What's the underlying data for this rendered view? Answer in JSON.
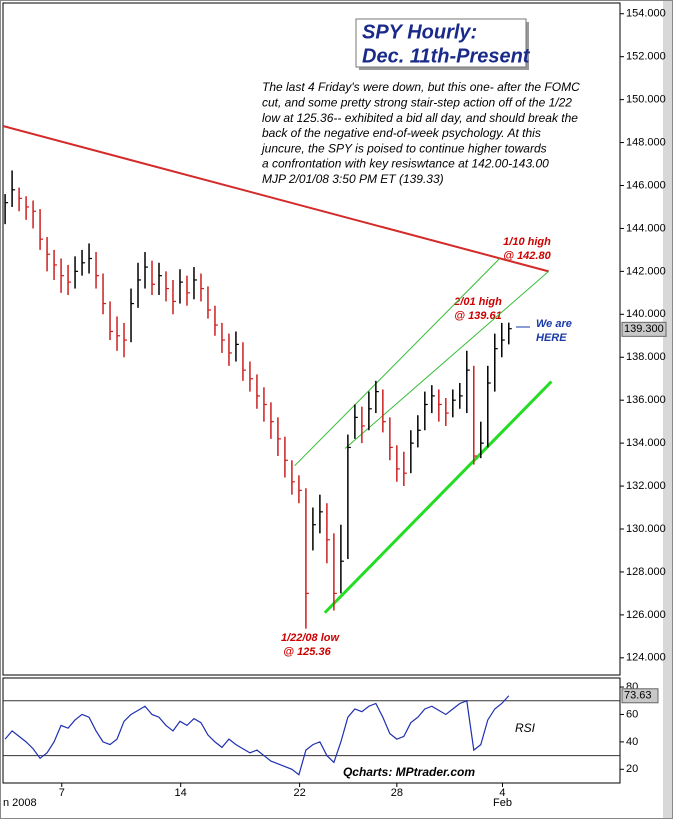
{
  "chart_data": [
    {
      "type": "ohlc",
      "title": [
        "SPY Hourly:",
        "Dec. 11th-Present"
      ],
      "commentary": [
        "The last 4 Friday's were down, but this one- after the FOMC",
        "cut, and some pretty strong stair-step action off of the 1/22",
        "low at 125.36-- exhibited a bid all day, and should break the",
        "back of the negative end-of-week psychology.  At this",
        "juncure, the SPY is poised to continue higher towards",
        "a confrontation with key resiswtance at 142.00-143.00",
        "MJP  2/01/08  3:50 PM ET  (139.33)"
      ],
      "annotations": [
        [
          "1/10 high",
          "@ 142.80"
        ],
        [
          "2/01 high",
          "@ 139.61"
        ],
        [
          "We are",
          "HERE"
        ],
        [
          "1/22/08 low",
          "@ 125.36"
        ]
      ],
      "up_color": "#000000",
      "down_color": "#cc1f1f",
      "high": [
        145.6,
        146.7,
        145.9,
        145.5,
        145.3,
        144.9,
        143.6,
        143.0,
        142.6,
        142.3,
        142.7,
        143.0,
        143.3,
        142.9,
        141.9,
        140.6,
        139.9,
        139.6,
        141.2,
        142.4,
        142.9,
        142.5,
        142.4,
        142.0,
        141.6,
        142.1,
        141.8,
        142.2,
        141.9,
        141.3,
        140.4,
        139.6,
        139.1,
        139.2,
        138.7,
        137.8,
        137.2,
        136.6,
        135.9,
        135.2,
        134.3,
        133.2,
        132.5,
        131.9,
        131.0,
        131.6,
        131.2,
        129.8,
        130.2,
        134.4,
        135.8,
        135.7,
        136.4,
        136.9,
        136.5,
        135.2,
        133.9,
        133.6,
        134.6,
        135.3,
        136.4,
        136.7,
        136.5,
        136.1,
        136.5,
        136.8,
        138.3,
        137.6,
        135.0,
        137.6,
        139.1,
        139.6,
        139.61
      ],
      "low": [
        144.2,
        145.0,
        144.8,
        144.4,
        144.0,
        143.0,
        142.0,
        141.6,
        141.0,
        140.9,
        141.2,
        141.8,
        141.9,
        141.2,
        140.0,
        138.8,
        138.3,
        138.0,
        138.7,
        140.3,
        141.2,
        140.9,
        140.9,
        140.6,
        140.0,
        140.5,
        140.4,
        140.7,
        140.6,
        139.8,
        139.0,
        138.2,
        137.6,
        137.8,
        136.9,
        136.4,
        135.6,
        135.0,
        134.2,
        133.4,
        132.4,
        131.6,
        131.2,
        125.36,
        129.0,
        129.8,
        128.4,
        126.2,
        127.0,
        128.6,
        134.2,
        134.0,
        134.6,
        135.4,
        134.5,
        133.2,
        132.2,
        132.0,
        132.6,
        133.8,
        134.6,
        135.4,
        135.0,
        134.8,
        135.2,
        135.6,
        135.4,
        133.0,
        133.3,
        133.8,
        136.4,
        138.0,
        138.6
      ],
      "close": [
        145.2,
        145.8,
        145.4,
        145.0,
        144.8,
        143.5,
        142.8,
        142.3,
        141.8,
        141.5,
        142.0,
        142.4,
        142.6,
        141.8,
        140.5,
        139.2,
        139.0,
        138.8,
        140.5,
        141.6,
        142.2,
        141.4,
        141.8,
        141.2,
        140.6,
        141.5,
        141.0,
        141.6,
        141.2,
        140.2,
        139.5,
        138.8,
        138.2,
        138.6,
        137.4,
        137.0,
        136.2,
        135.8,
        135.0,
        134.2,
        133.2,
        132.2,
        131.8,
        127.0,
        130.2,
        130.8,
        129.5,
        127.0,
        128.5,
        133.8,
        135.2,
        134.8,
        135.6,
        136.4,
        135.0,
        133.8,
        132.8,
        132.6,
        134.0,
        134.6,
        135.8,
        136.2,
        135.8,
        135.4,
        136.0,
        136.2,
        137.4,
        133.4,
        134.0,
        136.8,
        138.4,
        138.8,
        139.33
      ],
      "trendlines": [
        {
          "color": "#d42a2a",
          "width": 2,
          "x": [
            -0.3,
            77.7
          ],
          "y": [
            148.77,
            142.0
          ]
        },
        {
          "color": "#22dd22",
          "width": 3,
          "x": [
            45.7,
            78.1
          ],
          "y": [
            126.1,
            136.87
          ]
        },
        {
          "color": "#33bb33",
          "width": 1,
          "x": [
            41.4,
            70.7
          ],
          "y": [
            132.95,
            142.6
          ]
        },
        {
          "color": "#33bb33",
          "width": 1,
          "x": [
            48.6,
            77.7
          ],
          "y": [
            133.75,
            142.0
          ]
        }
      ],
      "last_price": {
        "value": 139.3,
        "label": "139.300"
      },
      "xlim": [
        -0.3,
        87.9
      ],
      "ylim": [
        123.2,
        154.5
      ],
      "yticks": [
        {
          "value": 124,
          "label": "124.000"
        },
        {
          "value": 126,
          "label": "126.000"
        },
        {
          "value": 128,
          "label": "128.000"
        },
        {
          "value": 130,
          "label": "130.000"
        },
        {
          "value": 132,
          "label": "132.000"
        },
        {
          "value": 134,
          "label": "134.000"
        },
        {
          "value": 136,
          "label": "136.000"
        },
        {
          "value": 138,
          "label": "138.000"
        },
        {
          "value": 140,
          "label": "140.000"
        },
        {
          "value": 142,
          "label": "142.000"
        },
        {
          "value": 144,
          "label": "144.000"
        },
        {
          "value": 146,
          "label": "146.000"
        },
        {
          "value": 148,
          "label": "148.000"
        },
        {
          "value": 150,
          "label": "150.000"
        },
        {
          "value": 152,
          "label": "152.000"
        },
        {
          "value": 154,
          "label": "154.000"
        }
      ]
    },
    {
      "type": "line",
      "label": "RSI",
      "source": "Qcharts: MPtrader.com",
      "color": "#1f2fb0",
      "values": [
        42,
        48,
        44,
        40,
        35,
        28,
        32,
        40,
        52,
        50,
        56,
        60,
        58,
        48,
        40,
        38,
        42,
        55,
        60,
        63,
        66,
        60,
        58,
        52,
        48,
        55,
        52,
        57,
        54,
        45,
        40,
        36,
        42,
        38,
        35,
        32,
        34,
        30,
        26,
        24,
        22,
        20,
        16,
        34,
        38,
        40,
        30,
        25,
        40,
        58,
        64,
        62,
        66,
        68,
        58,
        46,
        42,
        44,
        54,
        58,
        64,
        66,
        63,
        60,
        64,
        68,
        70,
        34,
        38,
        56,
        64,
        68,
        73.63
      ],
      "ref_lines": [
        70,
        30
      ],
      "xlim": [
        -0.3,
        87.9
      ],
      "ylim": [
        10,
        86.6
      ],
      "yticks": [
        20,
        40,
        60,
        80
      ],
      "xticks": [
        {
          "value": 8.1,
          "label": "7"
        },
        {
          "value": 25.1,
          "label": "14"
        },
        {
          "value": 42.1,
          "label": "22"
        },
        {
          "value": 56,
          "label": "28"
        },
        {
          "value": 71.1,
          "label": "4"
        }
      ],
      "month_labels": [
        {
          "value": 2.1,
          "label": "n 2008"
        },
        {
          "value": 71.1,
          "label": "Feb"
        }
      ]
    }
  ]
}
